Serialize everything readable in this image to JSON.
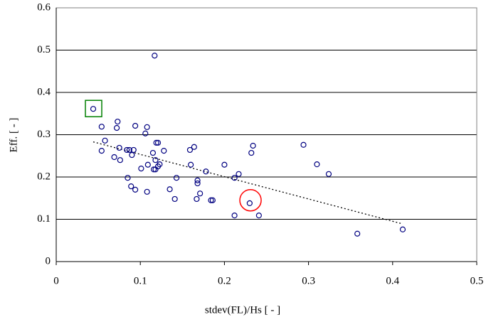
{
  "chart_data": {
    "type": "scatter",
    "x_label": "stdev(FL)/Hs [ - ]",
    "y_label": "Eff. [ - ]",
    "xlim": [
      0,
      0.5
    ],
    "ylim": [
      0,
      0.6
    ],
    "xticks": [
      0,
      0.1,
      0.2,
      0.3,
      0.4,
      0.5
    ],
    "yticks": [
      0,
      0.1,
      0.2,
      0.3,
      0.4,
      0.5,
      0.6
    ],
    "grid": true,
    "series": [
      {
        "color": "#000080",
        "x": [
          0.044,
          0.117,
          0.054,
          0.058,
          0.054,
          0.073,
          0.072,
          0.094,
          0.108,
          0.106,
          0.119,
          0.121,
          0.128,
          0.075,
          0.084,
          0.087,
          0.092,
          0.09,
          0.115,
          0.069,
          0.076,
          0.118,
          0.109,
          0.101,
          0.116,
          0.118,
          0.121,
          0.123,
          0.085,
          0.143,
          0.089,
          0.094,
          0.108,
          0.135,
          0.141,
          0.159,
          0.164,
          0.16,
          0.178,
          0.168,
          0.168,
          0.171,
          0.167,
          0.184,
          0.186,
          0.2,
          0.217,
          0.212,
          0.234,
          0.232,
          0.23,
          0.212,
          0.241,
          0.294,
          0.31,
          0.324,
          0.358,
          0.412
        ],
        "y": [
          0.361,
          0.487,
          0.319,
          0.286,
          0.262,
          0.331,
          0.316,
          0.321,
          0.318,
          0.303,
          0.281,
          0.281,
          0.262,
          0.269,
          0.264,
          0.264,
          0.264,
          0.252,
          0.257,
          0.247,
          0.24,
          0.24,
          0.229,
          0.22,
          0.218,
          0.218,
          0.225,
          0.23,
          0.198,
          0.198,
          0.178,
          0.17,
          0.165,
          0.171,
          0.148,
          0.264,
          0.271,
          0.229,
          0.213,
          0.192,
          0.185,
          0.161,
          0.148,
          0.145,
          0.145,
          0.229,
          0.207,
          0.198,
          0.274,
          0.257,
          0.138,
          0.109,
          0.109,
          0.276,
          0.23,
          0.207,
          0.066,
          0.076
        ]
      }
    ],
    "trendline": {
      "x": [
        0.044,
        0.412
      ],
      "y": [
        0.283,
        0.089
      ]
    },
    "highlights": [
      {
        "shape": "square",
        "color": "#008000",
        "x": 0.044,
        "y": 0.361
      },
      {
        "shape": "circle",
        "color": "#ff0000",
        "x": 0.231,
        "y": 0.145
      }
    ]
  }
}
